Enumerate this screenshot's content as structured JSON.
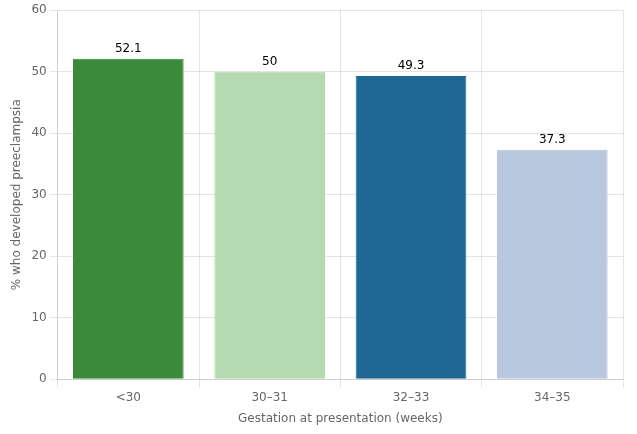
{
  "chart_data": {
    "type": "bar",
    "categories": [
      "<30",
      "30–31",
      "32–33",
      "34–35"
    ],
    "values": [
      52.1,
      50,
      49.3,
      37.3
    ],
    "colors": [
      "#3a8a3a",
      "#b5d9b0",
      "#1f6895",
      "#b8c8de"
    ],
    "xlabel": "Gestation at presentation (weeks)",
    "ylabel": "% who developed preeclampsia",
    "ylim": [
      0,
      60
    ],
    "yticks": [
      0,
      10,
      20,
      30,
      40,
      50,
      60
    ],
    "grid": true,
    "data_labels": true
  }
}
